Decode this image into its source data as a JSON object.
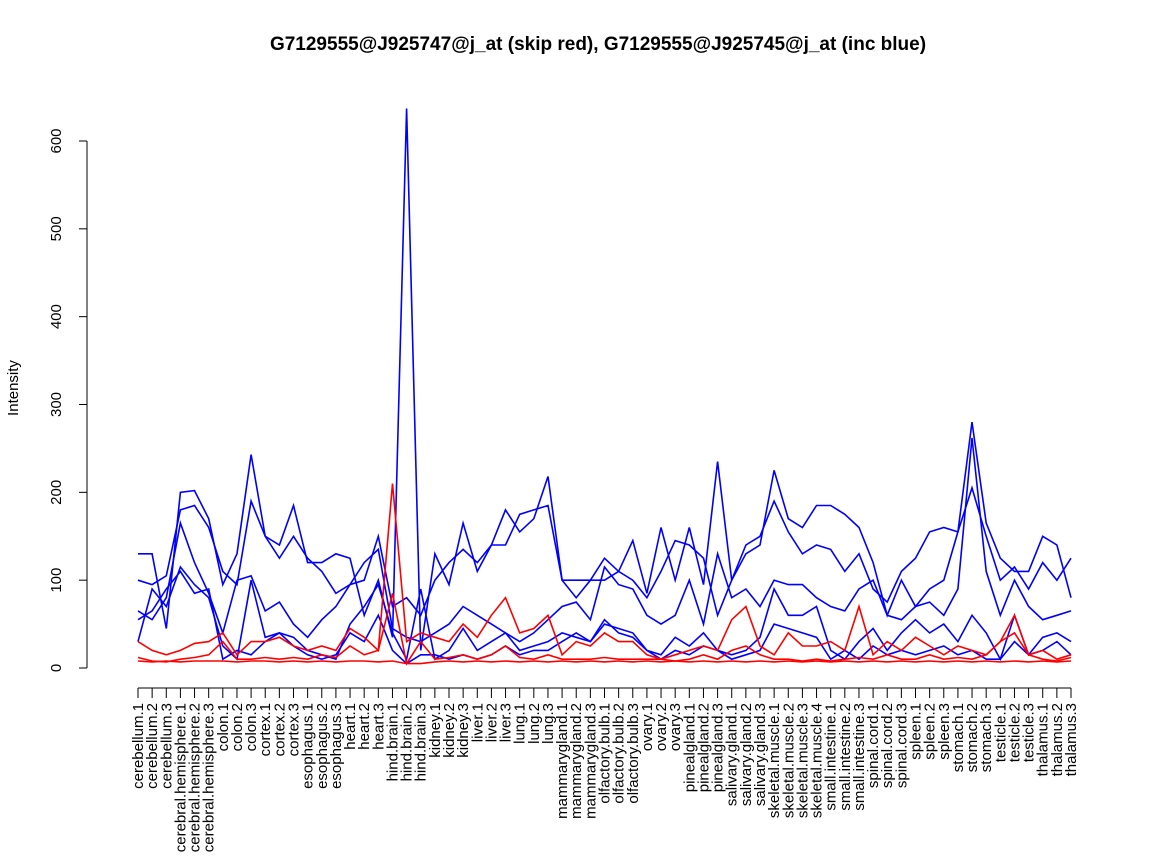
{
  "chart_data": {
    "type": "line",
    "title": "G7129555@J925747@j_at (skip red), G7129555@J925745@j_at (inc blue)",
    "xlabel": "",
    "ylabel": "Intensity",
    "ylim": [
      0,
      600
    ],
    "yticks": [
      0,
      100,
      200,
      300,
      400,
      500,
      600
    ],
    "grid": false,
    "categories": [
      "cerebellum.1",
      "cerebellum.2",
      "cerebellum.3",
      "cerebral.hemisphere.1",
      "cerebral.hemisphere.2",
      "cerebral.hemisphere.3",
      "colon.1",
      "colon.2",
      "colon.3",
      "cortex.1",
      "cortex.2",
      "cortex.3",
      "esophagus.1",
      "esophagus.2",
      "esophagus.3",
      "heart.1",
      "heart.2",
      "heart.3",
      "hind.brain.1",
      "hind.brain.2",
      "hind.brain.3",
      "kidney.1",
      "kidney.2",
      "kidney.3",
      "liver.1",
      "liver.2",
      "liver.3",
      "lung.1",
      "lung.2",
      "lung.3",
      "mammarygland.1",
      "mammarygland.2",
      "mammarygland.3",
      "olfactory.bulb.1",
      "olfactory.bulb.2",
      "olfactory.bulb.3",
      "ovary.1",
      "ovary.2",
      "ovary.3",
      "pinealgland.1",
      "pinealgland.2",
      "pinealgland.3",
      "salivary.gland.1",
      "salivary.gland.2",
      "salivary.gland.3",
      "skeletal.muscle.1",
      "skeletal.muscle.2",
      "skeletal.muscle.3",
      "skeletal.muscle.4",
      "small.intestine.1",
      "small.intestine.2",
      "small.intestine.3",
      "spinal.cord.1",
      "spinal.cord.2",
      "spinal.cord.3",
      "spleen.1",
      "spleen.2",
      "spleen.3",
      "stomach.1",
      "stomach.2",
      "stomach.3",
      "testicle.1",
      "testicle.2",
      "testicle.3",
      "thalamus.1",
      "thalamus.2",
      "thalamus.3"
    ],
    "series": [
      {
        "name": "inc blue 1",
        "color": "#0000ff",
        "values": [
          130,
          130,
          45,
          200,
          202,
          170,
          95,
          130,
          243,
          150,
          140,
          185,
          120,
          120,
          130,
          125,
          60,
          100,
          35,
          637,
          20,
          130,
          95,
          165,
          110,
          140,
          180,
          155,
          170,
          218,
          100,
          80,
          100,
          100,
          110,
          145,
          85,
          160,
          100,
          160,
          95,
          235,
          100,
          130,
          140,
          225,
          170,
          160,
          185,
          185,
          175,
          160,
          120,
          60,
          100,
          70,
          90,
          100,
          155,
          280,
          165,
          125,
          110,
          110,
          150,
          140,
          80
        ]
      },
      {
        "name": "inc blue 2",
        "color": "#0000ff",
        "values": [
          100,
          95,
          105,
          180,
          185,
          160,
          110,
          95,
          190,
          150,
          125,
          150,
          125,
          110,
          85,
          95,
          100,
          150,
          70,
          80,
          60,
          100,
          120,
          135,
          120,
          140,
          140,
          175,
          180,
          185,
          100,
          100,
          100,
          125,
          110,
          100,
          80,
          110,
          145,
          140,
          125,
          60,
          100,
          140,
          150,
          190,
          155,
          130,
          140,
          135,
          110,
          130,
          90,
          75,
          110,
          125,
          155,
          160,
          155,
          205,
          150,
          100,
          115,
          90,
          120,
          100,
          125
        ]
      },
      {
        "name": "inc blue 3",
        "color": "#0000ff",
        "values": [
          65,
          55,
          80,
          165,
          120,
          85,
          40,
          100,
          105,
          65,
          75,
          50,
          35,
          55,
          70,
          95,
          120,
          135,
          45,
          35,
          30,
          40,
          50,
          70,
          60,
          50,
          40,
          30,
          40,
          55,
          70,
          75,
          55,
          115,
          95,
          90,
          60,
          50,
          60,
          100,
          50,
          130,
          80,
          90,
          70,
          100,
          95,
          95,
          80,
          70,
          65,
          90,
          100,
          60,
          55,
          70,
          75,
          60,
          90,
          262,
          110,
          60,
          100,
          70,
          55,
          60,
          65
        ]
      },
      {
        "name": "inc blue 4",
        "color": "#0000ff",
        "values": [
          30,
          90,
          70,
          115,
          95,
          80,
          25,
          10,
          100,
          35,
          40,
          35,
          20,
          15,
          10,
          50,
          70,
          95,
          40,
          10,
          90,
          10,
          20,
          45,
          20,
          30,
          40,
          20,
          25,
          30,
          40,
          35,
          30,
          55,
          40,
          35,
          20,
          15,
          35,
          25,
          40,
          20,
          15,
          20,
          35,
          90,
          60,
          60,
          70,
          20,
          10,
          30,
          45,
          20,
          40,
          55,
          40,
          50,
          30,
          60,
          40,
          10,
          60,
          15,
          35,
          40,
          30
        ]
      },
      {
        "name": "inc blue 5",
        "color": "#0000ff",
        "values": [
          55,
          65,
          90,
          110,
          85,
          90,
          10,
          20,
          15,
          30,
          40,
          25,
          15,
          10,
          15,
          40,
          30,
          60,
          20,
          5,
          15,
          15,
          10,
          15,
          10,
          15,
          25,
          15,
          20,
          20,
          30,
          40,
          30,
          50,
          45,
          40,
          20,
          10,
          20,
          15,
          25,
          20,
          10,
          15,
          20,
          50,
          45,
          40,
          35,
          10,
          20,
          10,
          25,
          15,
          20,
          15,
          20,
          25,
          15,
          20,
          10,
          10,
          30,
          15,
          20,
          30,
          15
        ]
      },
      {
        "name": "skip red 1",
        "color": "#ff0000",
        "values": [
          30,
          20,
          15,
          20,
          28,
          30,
          40,
          15,
          30,
          30,
          35,
          25,
          20,
          25,
          20,
          45,
          35,
          20,
          210,
          30,
          40,
          35,
          30,
          50,
          35,
          60,
          80,
          40,
          45,
          60,
          15,
          30,
          25,
          40,
          30,
          30,
          15,
          10,
          15,
          20,
          25,
          20,
          55,
          70,
          25,
          15,
          40,
          25,
          25,
          30,
          20,
          70,
          15,
          30,
          20,
          35,
          25,
          15,
          25,
          20,
          15,
          30,
          60,
          15,
          20,
          10,
          15
        ]
      },
      {
        "name": "skip red 2",
        "color": "#ff0000",
        "values": [
          12,
          8,
          7,
          10,
          12,
          15,
          30,
          10,
          10,
          12,
          10,
          12,
          10,
          15,
          12,
          25,
          15,
          20,
          85,
          5,
          30,
          10,
          12,
          15,
          10,
          15,
          25,
          12,
          10,
          15,
          10,
          10,
          10,
          12,
          10,
          10,
          10,
          10,
          8,
          10,
          15,
          10,
          20,
          25,
          15,
          10,
          10,
          8,
          10,
          8,
          10,
          12,
          10,
          15,
          10,
          10,
          15,
          10,
          12,
          10,
          15,
          30,
          40,
          15,
          10,
          8,
          12
        ]
      },
      {
        "name": "skip red 3",
        "color": "#ff0000",
        "values": [
          8,
          7,
          8,
          7,
          8,
          8,
          8,
          7,
          8,
          8,
          7,
          8,
          7,
          8,
          7,
          8,
          8,
          7,
          8,
          5,
          5,
          7,
          8,
          7,
          8,
          7,
          8,
          7,
          8,
          7,
          8,
          7,
          8,
          7,
          8,
          7,
          8,
          7,
          8,
          7,
          8,
          7,
          8,
          7,
          8,
          7,
          8,
          7,
          8,
          7,
          8,
          7,
          8,
          7,
          8,
          7,
          8,
          7,
          8,
          7,
          8,
          7,
          8,
          7,
          8,
          7,
          8
        ]
      }
    ]
  }
}
